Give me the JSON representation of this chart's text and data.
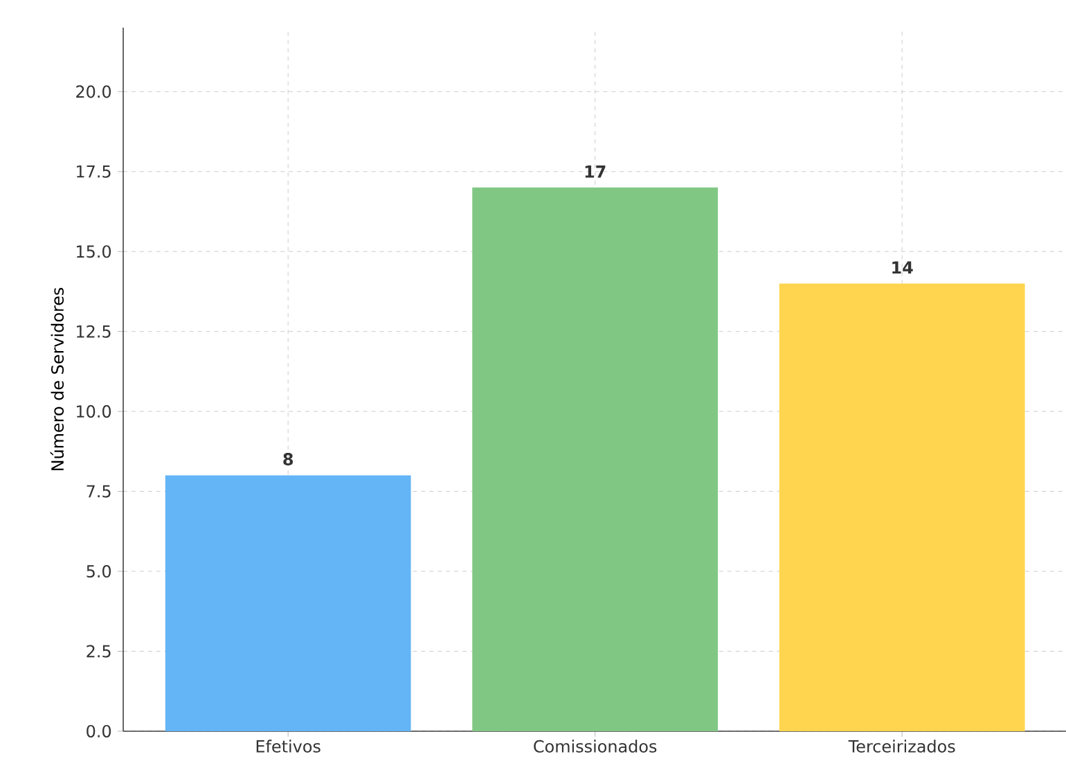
{
  "chart_data": {
    "type": "bar",
    "ylabel": "Número de Servidores",
    "categories": [
      "Efetivos",
      "Comissionados",
      "Terceirizados"
    ],
    "values": [
      8,
      17,
      14
    ],
    "colors": [
      "#64b5f6",
      "#81c784",
      "#ffd54f"
    ],
    "ylim": [
      0,
      22
    ],
    "yticks": [
      {
        "value": 0,
        "label": "0.0"
      },
      {
        "value": 2.5,
        "label": "2.5"
      },
      {
        "value": 5,
        "label": "5.0"
      },
      {
        "value": 7.5,
        "label": "7.5"
      },
      {
        "value": 10,
        "label": "10.0"
      },
      {
        "value": 12.5,
        "label": "12.5"
      },
      {
        "value": 15,
        "label": "15.0"
      },
      {
        "value": 17.5,
        "label": "17.5"
      },
      {
        "value": 20,
        "label": "20.0"
      }
    ],
    "grid": true,
    "data_labels": true
  }
}
